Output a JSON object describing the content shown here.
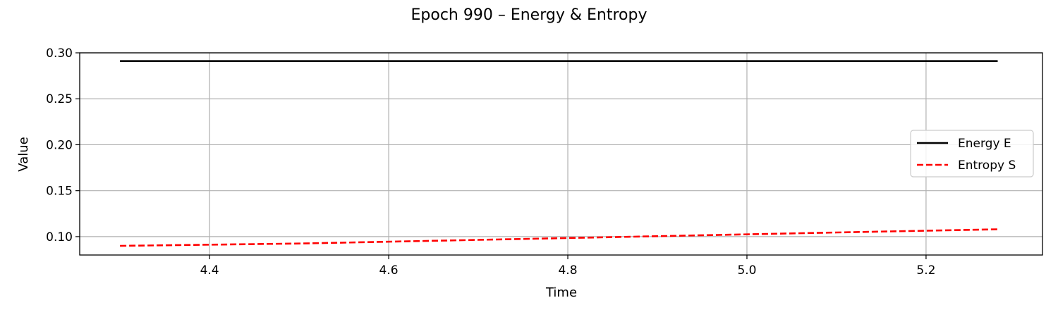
{
  "chart_data": {
    "type": "line",
    "title": "Epoch 990 – Energy & Entropy",
    "xlabel": "Time",
    "ylabel": "Value",
    "xlim": [
      4.255,
      5.33
    ],
    "ylim": [
      0.08,
      0.3
    ],
    "xticks": [
      4.4,
      4.6,
      4.8,
      5.0,
      5.2
    ],
    "xtick_labels": [
      "4.4",
      "4.6",
      "4.8",
      "5.0",
      "5.2"
    ],
    "yticks": [
      0.1,
      0.15,
      0.2,
      0.25,
      0.3
    ],
    "ytick_labels": [
      "0.10",
      "0.15",
      "0.20",
      "0.25",
      "0.30"
    ],
    "grid": true,
    "legend_position": "center-right",
    "series": [
      {
        "name": "Energy E",
        "color": "#000000",
        "style": "solid",
        "x": [
          4.3,
          4.5,
          4.7,
          4.9,
          5.1,
          5.28
        ],
        "y": [
          0.291,
          0.291,
          0.291,
          0.291,
          0.291,
          0.291
        ]
      },
      {
        "name": "Entropy S",
        "color": "#ff0000",
        "style": "dashed",
        "x": [
          4.3,
          4.5,
          4.7,
          4.9,
          5.1,
          5.28
        ],
        "y": [
          0.09,
          0.0925,
          0.0965,
          0.1005,
          0.1045,
          0.108
        ]
      }
    ]
  }
}
